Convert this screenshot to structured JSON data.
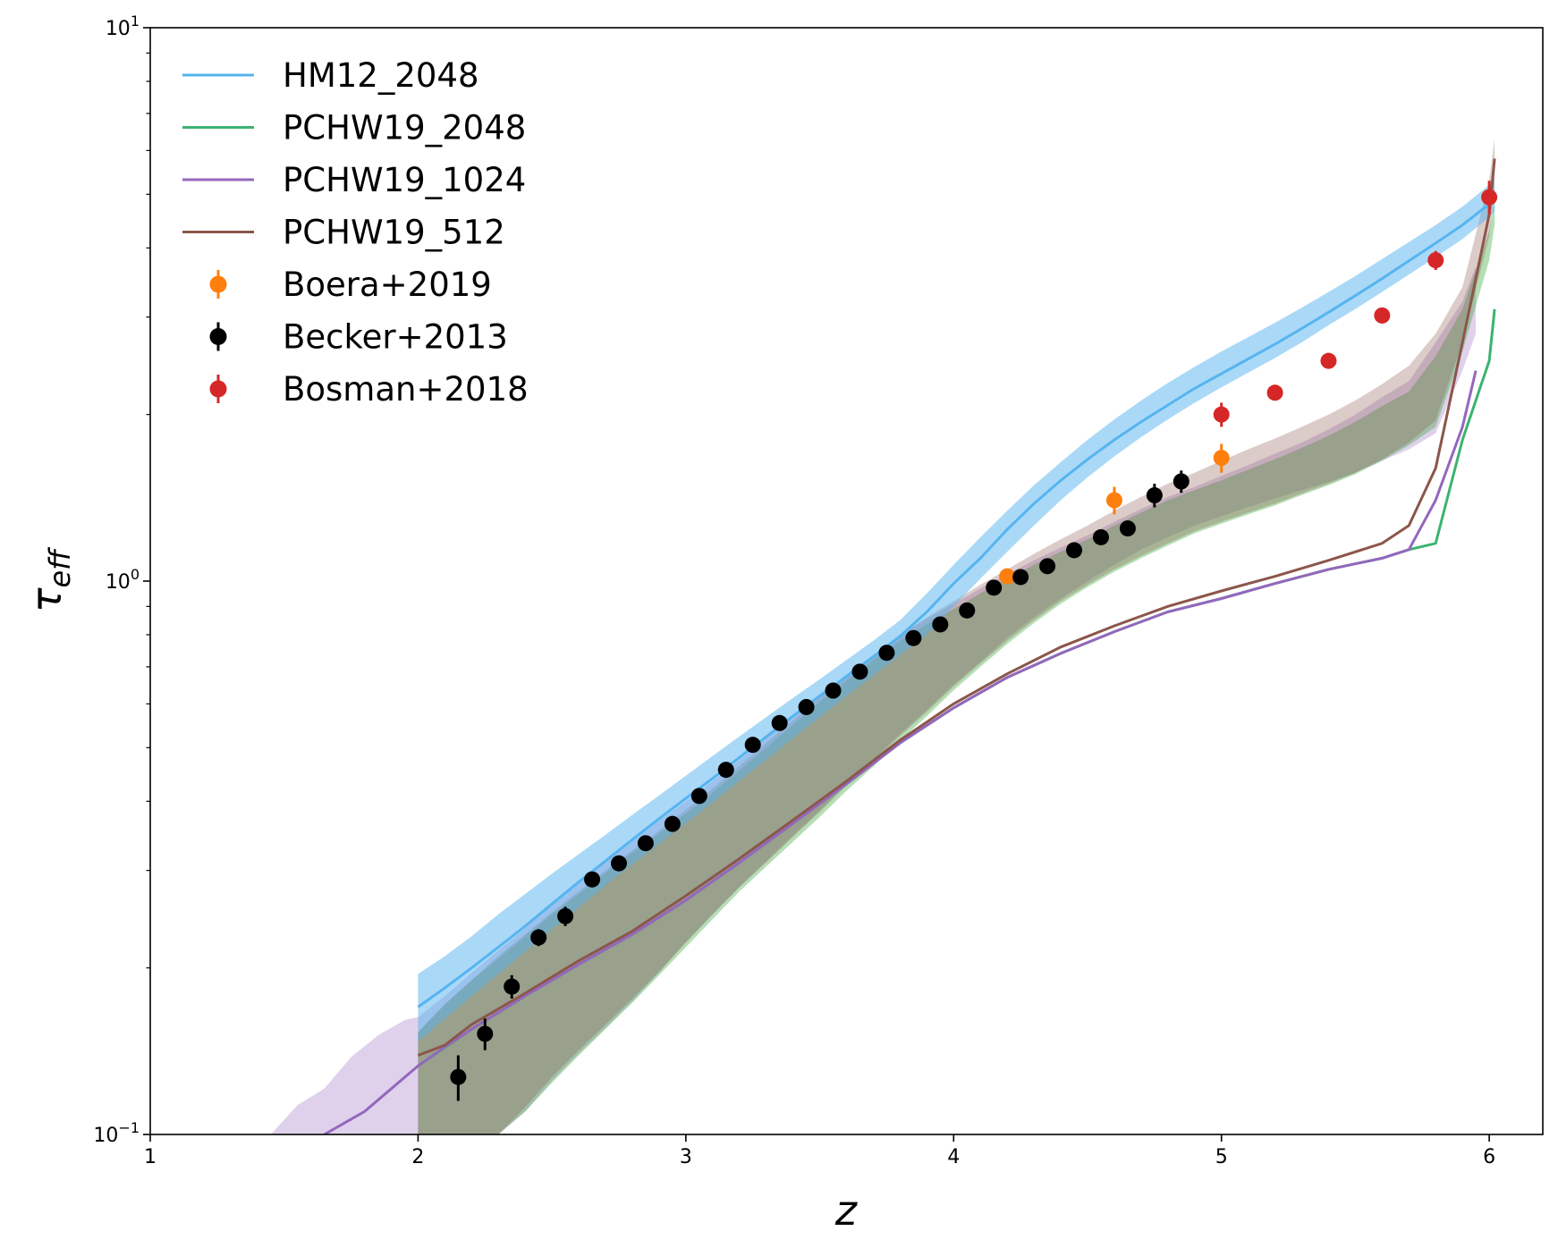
{
  "chart_data": {
    "type": "line",
    "xlabel": "z",
    "ylabel": "τ_eff",
    "xlim": [
      1,
      6.2
    ],
    "ylim": [
      0.1,
      10
    ],
    "yscale": "log",
    "legend_placement": "top-left",
    "grid": false,
    "x_ticks": [
      {
        "value": 1,
        "label": "1"
      },
      {
        "value": 2,
        "label": "2"
      },
      {
        "value": 3,
        "label": "3"
      },
      {
        "value": 4,
        "label": "4"
      },
      {
        "value": 5,
        "label": "5"
      },
      {
        "value": 6,
        "label": "6"
      }
    ],
    "y_ticks": [
      {
        "value": 0.1,
        "base": "10",
        "exp": "−1"
      },
      {
        "value": 1,
        "base": "10",
        "exp": "0"
      },
      {
        "value": 10,
        "base": "10",
        "exp": "1"
      }
    ],
    "bands": [
      {
        "name": "PCHW19_1024",
        "color": "#9467bd",
        "opacity": 0.3,
        "x": [
          1.45,
          1.55,
          1.65,
          1.75,
          1.85,
          1.95,
          2.0,
          2.1,
          2.2,
          2.3,
          2.4,
          2.5,
          2.6,
          2.7,
          2.8,
          2.9,
          3.0,
          3.1,
          3.2,
          3.3,
          3.4,
          3.5,
          3.6,
          3.7,
          3.8,
          3.9,
          4.0,
          4.1,
          4.2,
          4.3,
          4.4,
          4.5,
          4.6,
          4.7,
          4.8,
          4.9,
          5.0,
          5.1,
          5.2,
          5.3,
          5.4,
          5.5,
          5.6,
          5.7,
          5.8,
          5.9,
          5.95
        ],
        "lower": [
          0.1,
          0.1,
          0.1,
          0.1,
          0.1,
          0.1,
          0.1,
          0.1,
          0.1,
          0.1,
          0.11,
          0.125,
          0.14,
          0.156,
          0.174,
          0.196,
          0.223,
          0.25,
          0.28,
          0.312,
          0.347,
          0.385,
          0.43,
          0.475,
          0.53,
          0.585,
          0.65,
          0.715,
          0.79,
          0.86,
          0.93,
          1.0,
          1.07,
          1.14,
          1.2,
          1.26,
          1.31,
          1.36,
          1.41,
          1.46,
          1.51,
          1.57,
          1.65,
          1.73,
          1.85,
          2.4,
          2.8
        ],
        "upper": [
          0.1,
          0.113,
          0.121,
          0.138,
          0.151,
          0.161,
          0.163,
          0.178,
          0.196,
          0.215,
          0.236,
          0.26,
          0.285,
          0.31,
          0.338,
          0.369,
          0.4,
          0.435,
          0.475,
          0.52,
          0.57,
          0.62,
          0.675,
          0.735,
          0.8,
          0.855,
          0.91,
          0.97,
          1.03,
          1.09,
          1.15,
          1.21,
          1.28,
          1.35,
          1.42,
          1.48,
          1.55,
          1.62,
          1.7,
          1.78,
          1.88,
          2.0,
          2.15,
          2.3,
          2.7,
          3.2,
          3.7
        ]
      },
      {
        "name": "PCHW19_2048",
        "color": "#2ca02c",
        "opacity": 0.35,
        "x": [
          2.0,
          2.1,
          2.2,
          2.3,
          2.4,
          2.5,
          2.6,
          2.7,
          2.8,
          2.9,
          3.0,
          3.1,
          3.2,
          3.3,
          3.4,
          3.5,
          3.6,
          3.7,
          3.8,
          3.9,
          4.0,
          4.1,
          4.2,
          4.3,
          4.4,
          4.5,
          4.6,
          4.7,
          4.8,
          4.9,
          5.0,
          5.1,
          5.2,
          5.3,
          5.4,
          5.5,
          5.6,
          5.7,
          5.8,
          5.9,
          6.0,
          6.02
        ],
        "lower": [
          0.1,
          0.1,
          0.1,
          0.1,
          0.11,
          0.124,
          0.139,
          0.155,
          0.173,
          0.194,
          0.218,
          0.245,
          0.275,
          0.305,
          0.338,
          0.375,
          0.418,
          0.462,
          0.515,
          0.57,
          0.635,
          0.7,
          0.77,
          0.84,
          0.91,
          0.975,
          1.04,
          1.1,
          1.16,
          1.22,
          1.27,
          1.32,
          1.37,
          1.43,
          1.49,
          1.56,
          1.65,
          1.76,
          1.9,
          2.6,
          3.8,
          4.4
        ],
        "upper": [
          0.153,
          0.172,
          0.19,
          0.208,
          0.228,
          0.25,
          0.272,
          0.297,
          0.323,
          0.35,
          0.38,
          0.415,
          0.455,
          0.5,
          0.55,
          0.605,
          0.66,
          0.72,
          0.78,
          0.835,
          0.89,
          0.95,
          1.01,
          1.07,
          1.13,
          1.19,
          1.26,
          1.33,
          1.4,
          1.46,
          1.52,
          1.59,
          1.66,
          1.74,
          1.83,
          1.94,
          2.07,
          2.2,
          2.55,
          3.1,
          4.3,
          4.9
        ]
      },
      {
        "name": "PCHW19_512",
        "color": "#8c564b",
        "opacity": 0.3,
        "x": [
          2.0,
          2.1,
          2.2,
          2.3,
          2.4,
          2.5,
          2.6,
          2.7,
          2.8,
          2.9,
          3.0,
          3.1,
          3.2,
          3.3,
          3.4,
          3.5,
          3.6,
          3.7,
          3.8,
          3.9,
          4.0,
          4.1,
          4.2,
          4.3,
          4.4,
          4.5,
          4.6,
          4.7,
          4.8,
          4.9,
          5.0,
          5.1,
          5.2,
          5.3,
          5.4,
          5.5,
          5.6,
          5.7,
          5.8,
          5.9,
          6.0,
          6.02
        ],
        "lower": [
          0.1,
          0.1,
          0.1,
          0.1,
          0.112,
          0.127,
          0.142,
          0.158,
          0.176,
          0.197,
          0.222,
          0.25,
          0.28,
          0.31,
          0.345,
          0.383,
          0.427,
          0.472,
          0.525,
          0.58,
          0.645,
          0.71,
          0.78,
          0.85,
          0.92,
          0.985,
          1.05,
          1.11,
          1.17,
          1.23,
          1.28,
          1.33,
          1.38,
          1.44,
          1.5,
          1.57,
          1.66,
          1.78,
          1.95,
          2.7,
          4.2,
          5.1
        ],
        "upper": [
          0.153,
          0.172,
          0.19,
          0.21,
          0.23,
          0.252,
          0.275,
          0.3,
          0.326,
          0.354,
          0.386,
          0.422,
          0.463,
          0.51,
          0.56,
          0.617,
          0.675,
          0.735,
          0.8,
          0.86,
          0.92,
          0.985,
          1.05,
          1.12,
          1.19,
          1.26,
          1.34,
          1.42,
          1.5,
          1.57,
          1.65,
          1.73,
          1.81,
          1.9,
          2.0,
          2.12,
          2.27,
          2.45,
          2.8,
          3.4,
          5.3,
          6.3
        ]
      },
      {
        "name": "HM12_2048",
        "color": "#56b4f0",
        "opacity": 0.5,
        "x": [
          2.0,
          2.1,
          2.2,
          2.3,
          2.4,
          2.5,
          2.6,
          2.7,
          2.8,
          2.9,
          3.0,
          3.1,
          3.2,
          3.3,
          3.4,
          3.5,
          3.6,
          3.7,
          3.8,
          3.9,
          4.0,
          4.1,
          4.2,
          4.3,
          4.4,
          4.5,
          4.6,
          4.7,
          4.8,
          4.9,
          5.0,
          5.1,
          5.2,
          5.3,
          5.4,
          5.5,
          5.6,
          5.7,
          5.8,
          5.9,
          6.0,
          6.02
        ],
        "lower": [
          0.147,
          0.162,
          0.178,
          0.195,
          0.214,
          0.235,
          0.257,
          0.282,
          0.308,
          0.335,
          0.365,
          0.398,
          0.436,
          0.476,
          0.52,
          0.568,
          0.62,
          0.675,
          0.735,
          0.8,
          0.9,
          1.01,
          1.13,
          1.26,
          1.4,
          1.54,
          1.68,
          1.82,
          1.96,
          2.1,
          2.24,
          2.38,
          2.53,
          2.7,
          2.9,
          3.1,
          3.33,
          3.58,
          3.85,
          4.15,
          4.55,
          4.65
        ],
        "upper": [
          0.195,
          0.21,
          0.228,
          0.25,
          0.272,
          0.296,
          0.321,
          0.348,
          0.378,
          0.41,
          0.445,
          0.483,
          0.524,
          0.568,
          0.615,
          0.665,
          0.72,
          0.78,
          0.85,
          0.95,
          1.07,
          1.2,
          1.34,
          1.49,
          1.64,
          1.8,
          1.96,
          2.12,
          2.28,
          2.44,
          2.6,
          2.76,
          2.93,
          3.12,
          3.33,
          3.56,
          3.82,
          4.1,
          4.4,
          4.75,
          5.2,
          5.3
        ]
      }
    ],
    "lines": [
      {
        "name": "HM12_2048",
        "color": "#56b4f0",
        "x": [
          2.0,
          2.1,
          2.2,
          2.3,
          2.4,
          2.5,
          2.6,
          2.7,
          2.8,
          2.9,
          3.0,
          3.1,
          3.2,
          3.3,
          3.4,
          3.5,
          3.6,
          3.7,
          3.8,
          3.9,
          4.0,
          4.1,
          4.2,
          4.3,
          4.4,
          4.5,
          4.6,
          4.7,
          4.8,
          4.9,
          5.0,
          5.1,
          5.2,
          5.3,
          5.4,
          5.5,
          5.6,
          5.7,
          5.8,
          5.9,
          6.0,
          6.02
        ],
        "y": [
          0.17,
          0.184,
          0.2,
          0.218,
          0.238,
          0.261,
          0.286,
          0.312,
          0.341,
          0.372,
          0.405,
          0.44,
          0.48,
          0.523,
          0.57,
          0.62,
          0.673,
          0.73,
          0.795,
          0.88,
          0.99,
          1.1,
          1.24,
          1.38,
          1.52,
          1.66,
          1.8,
          1.94,
          2.08,
          2.23,
          2.37,
          2.52,
          2.68,
          2.86,
          3.06,
          3.28,
          3.52,
          3.79,
          4.08,
          4.4,
          4.8,
          4.95
        ]
      },
      {
        "name": "PCHW19_2048",
        "color": "#3cb371",
        "x": [
          2.0,
          2.2,
          2.4,
          2.6,
          2.8,
          3.0,
          3.2,
          3.4,
          3.6,
          3.8,
          4.0,
          4.2,
          4.4,
          4.6,
          4.8,
          5.0,
          5.2,
          5.4,
          5.6,
          5.7,
          5.8,
          5.9,
          6.0,
          6.02
        ],
        "y": [
          0.133,
          0.155,
          0.178,
          0.203,
          0.23,
          0.265,
          0.31,
          0.365,
          0.43,
          0.51,
          0.59,
          0.67,
          0.74,
          0.81,
          0.88,
          0.93,
          0.99,
          1.05,
          1.1,
          1.14,
          1.17,
          1.8,
          2.5,
          3.1
        ]
      },
      {
        "name": "PCHW19_1024",
        "color": "#9467bd",
        "x": [
          1.65,
          1.8,
          1.9,
          2.0,
          2.1,
          2.2,
          2.4,
          2.6,
          2.8,
          3.0,
          3.2,
          3.4,
          3.6,
          3.8,
          4.0,
          4.2,
          4.4,
          4.6,
          4.8,
          5.0,
          5.2,
          5.4,
          5.6,
          5.7,
          5.8,
          5.9,
          5.95
        ],
        "y": [
          0.1,
          0.11,
          0.121,
          0.133,
          0.144,
          0.155,
          0.178,
          0.203,
          0.23,
          0.265,
          0.31,
          0.365,
          0.43,
          0.51,
          0.59,
          0.67,
          0.74,
          0.81,
          0.88,
          0.93,
          0.99,
          1.05,
          1.1,
          1.14,
          1.4,
          1.9,
          2.4
        ]
      },
      {
        "name": "PCHW19_512",
        "color": "#8c564b",
        "x": [
          2.0,
          2.1,
          2.2,
          2.4,
          2.6,
          2.8,
          3.0,
          3.2,
          3.4,
          3.6,
          3.8,
          4.0,
          4.2,
          4.4,
          4.6,
          4.8,
          5.0,
          5.2,
          5.4,
          5.6,
          5.7,
          5.8,
          5.9,
          6.0,
          6.02
        ],
        "y": [
          0.139,
          0.145,
          0.158,
          0.18,
          0.206,
          0.233,
          0.27,
          0.315,
          0.37,
          0.435,
          0.516,
          0.6,
          0.68,
          0.76,
          0.83,
          0.9,
          0.96,
          1.02,
          1.09,
          1.17,
          1.26,
          1.6,
          2.7,
          4.6,
          5.8
        ]
      }
    ],
    "scatter_series": [
      {
        "name": "Boera+2019",
        "color": "#ff7f0e",
        "x": [
          4.2,
          4.6,
          5.0
        ],
        "y": [
          1.02,
          1.4,
          1.67
        ],
        "yerr": [
          0.03,
          0.08,
          0.1
        ]
      },
      {
        "name": "Becker+2013",
        "color": "#000000",
        "x": [
          2.15,
          2.25,
          2.35,
          2.45,
          2.55,
          2.65,
          2.75,
          2.85,
          2.95,
          3.05,
          3.15,
          3.25,
          3.35,
          3.45,
          3.55,
          3.65,
          3.75,
          3.85,
          3.95,
          4.05,
          4.15,
          4.25,
          4.35,
          4.45,
          4.55,
          4.65,
          4.75,
          4.85
        ],
        "y": [
          0.127,
          0.152,
          0.185,
          0.227,
          0.248,
          0.289,
          0.309,
          0.336,
          0.364,
          0.409,
          0.456,
          0.506,
          0.554,
          0.592,
          0.634,
          0.686,
          0.742,
          0.789,
          0.835,
          0.885,
          0.973,
          1.017,
          1.064,
          1.137,
          1.2,
          1.245,
          1.429,
          1.514
        ],
        "yerr": [
          0.012,
          0.01,
          0.009,
          0.008,
          0.01,
          0.007,
          0.007,
          0.007,
          0.007,
          0.008,
          0.008,
          0.008,
          0.008,
          0.008,
          0.009,
          0.009,
          0.01,
          0.01,
          0.011,
          0.012,
          0.013,
          0.015,
          0.017,
          0.02,
          0.025,
          0.03,
          0.07,
          0.07
        ]
      },
      {
        "name": "Bosman+2018",
        "color": "#d62728",
        "x": [
          5.0,
          5.2,
          5.4,
          5.6,
          5.8,
          6.0
        ],
        "y": [
          2.0,
          2.19,
          2.5,
          3.02,
          3.8,
          4.94
        ],
        "yerr": [
          0.1,
          0.06,
          0.08,
          0.1,
          0.15,
          0.35
        ]
      }
    ],
    "legend": [
      {
        "label": "HM12_2048",
        "kind": "line",
        "color": "#56b4f0"
      },
      {
        "label": "PCHW19_2048",
        "kind": "line",
        "color": "#3cb371"
      },
      {
        "label": "PCHW19_1024",
        "kind": "line",
        "color": "#9467bd"
      },
      {
        "label": "PCHW19_512",
        "kind": "line",
        "color": "#8c564b"
      },
      {
        "label": "Boera+2019",
        "kind": "marker",
        "color": "#ff7f0e"
      },
      {
        "label": "Becker+2013",
        "kind": "marker",
        "color": "#000000"
      },
      {
        "label": "Bosman+2018",
        "kind": "marker",
        "color": "#d62728"
      }
    ]
  }
}
